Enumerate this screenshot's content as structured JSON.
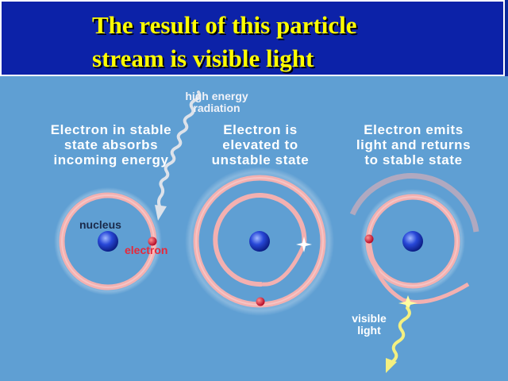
{
  "title": {
    "line1": "The result of this particle",
    "line2": "stream is visible light"
  },
  "colors": {
    "title_background": "#0c22a8",
    "title_text": "#ffff00",
    "diagram_background": "#5f9fd3",
    "orbit": "#f0a4a4",
    "electron": "#d81030",
    "nucleus": "#1535c8",
    "caption_text": "#ffffff",
    "radiation_arrow": "#d8dce4",
    "visible_light": "#f4f080"
  },
  "radiation_label": {
    "line1": "high energy",
    "line2": "radiation"
  },
  "steps": [
    {
      "line1": "Electron in stable",
      "line2": "state absorbs",
      "line3": "incoming energy"
    },
    {
      "line1": "Electron is",
      "line2": "elevated to",
      "line3": "unstable state"
    },
    {
      "line1": "Electron emits",
      "line2": "light and returns",
      "line3": "to stable state"
    }
  ],
  "labels": {
    "nucleus": "nucleus",
    "electron": "electron",
    "visible_light_line1": "visible",
    "visible_light_line2": "light"
  }
}
